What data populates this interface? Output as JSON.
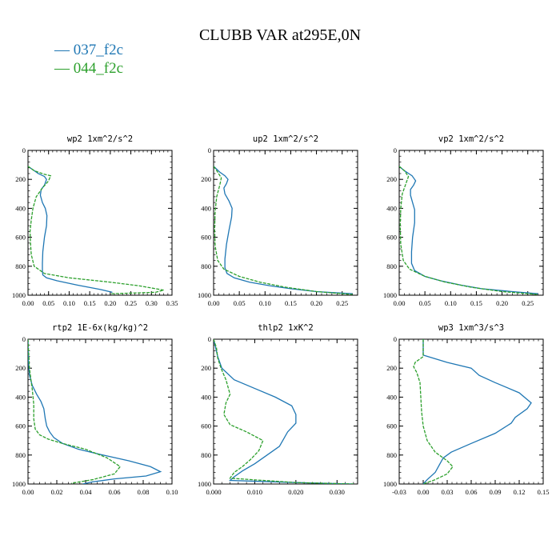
{
  "figure": {
    "title": "CLUBB VAR at295E,0N",
    "legend": [
      {
        "label": "— 037_f2c",
        "color": "#1f77b4"
      },
      {
        "label": "— 044_f2c",
        "color": "#2ca02c"
      }
    ]
  },
  "chart_data": [
    {
      "type": "line",
      "title": "wp2  1xm^2/s^2",
      "xlim": [
        0,
        0.35
      ],
      "ylim": [
        1000,
        0
      ],
      "xticks": [
        "0.00",
        "0.05",
        "0.10",
        "0.15",
        "0.20",
        "0.25",
        "0.30",
        "0.35"
      ],
      "yticks": [
        "0",
        "200",
        "400",
        "600",
        "800",
        "1000"
      ],
      "series": [
        {
          "name": "037_f2c",
          "color": "#1f77b4",
          "x": [
            0.0,
            0.01,
            0.025,
            0.04,
            0.045,
            0.04,
            0.032,
            0.03,
            0.035,
            0.042,
            0.046,
            0.045,
            0.04,
            0.036,
            0.035,
            0.035,
            0.036,
            0.045,
            0.07,
            0.12,
            0.175,
            0.205
          ],
          "y": [
            110,
            130,
            160,
            180,
            200,
            240,
            270,
            310,
            360,
            400,
            450,
            520,
            600,
            700,
            780,
            830,
            860,
            880,
            900,
            930,
            960,
            980
          ]
        },
        {
          "name": "044_f2c",
          "color": "#2ca02c",
          "x": [
            0.0,
            0.015,
            0.04,
            0.055,
            0.05,
            0.035,
            0.02,
            0.012,
            0.008,
            0.005,
            0.006,
            0.008,
            0.015,
            0.04,
            0.1,
            0.2,
            0.27,
            0.33,
            0.31,
            0.2
          ],
          "y": [
            110,
            140,
            165,
            175,
            210,
            260,
            320,
            400,
            480,
            560,
            640,
            720,
            800,
            850,
            880,
            910,
            935,
            965,
            980,
            990
          ]
        }
      ]
    },
    {
      "type": "line",
      "title": "up2  1xm^2/s^2",
      "xlim": [
        0,
        0.28
      ],
      "ylim": [
        1000,
        0
      ],
      "xticks": [
        "0.00",
        "0.05",
        "0.10",
        "0.15",
        "0.20",
        "0.25"
      ],
      "yticks": [
        "0",
        "200",
        "400",
        "600",
        "800",
        "1000"
      ],
      "series": [
        {
          "name": "037_f2c",
          "color": "#1f77b4",
          "x": [
            0.0,
            0.012,
            0.022,
            0.028,
            0.025,
            0.02,
            0.022,
            0.03,
            0.036,
            0.035,
            0.03,
            0.025,
            0.022,
            0.022,
            0.026,
            0.04,
            0.07,
            0.11,
            0.15,
            0.2,
            0.27
          ],
          "y": [
            110,
            150,
            175,
            200,
            230,
            260,
            300,
            350,
            400,
            460,
            550,
            650,
            750,
            810,
            850,
            880,
            910,
            935,
            955,
            975,
            990
          ]
        },
        {
          "name": "044_f2c",
          "color": "#2ca02c",
          "x": [
            0.0,
            0.008,
            0.015,
            0.012,
            0.006,
            0.003,
            0.002,
            0.003,
            0.008,
            0.02,
            0.05,
            0.09,
            0.14,
            0.2,
            0.27
          ],
          "y": [
            110,
            150,
            190,
            240,
            320,
            420,
            540,
            660,
            760,
            820,
            870,
            910,
            945,
            975,
            995
          ]
        }
      ]
    },
    {
      "type": "line",
      "title": "vp2  1xm^2/s^2",
      "xlim": [
        0,
        0.28
      ],
      "ylim": [
        1000,
        0
      ],
      "xticks": [
        "0.00",
        "0.05",
        "0.10",
        "0.15",
        "0.20",
        "0.25"
      ],
      "yticks": [
        "0",
        "200",
        "400",
        "600",
        "800",
        "1000"
      ],
      "series": [
        {
          "name": "037_f2c",
          "color": "#1f77b4",
          "x": [
            0.0,
            0.01,
            0.025,
            0.032,
            0.028,
            0.022,
            0.022,
            0.026,
            0.03,
            0.03,
            0.026,
            0.024,
            0.024,
            0.03,
            0.05,
            0.08,
            0.12,
            0.16,
            0.22,
            0.27
          ],
          "y": [
            110,
            140,
            175,
            210,
            240,
            270,
            310,
            360,
            410,
            500,
            600,
            700,
            780,
            830,
            870,
            900,
            930,
            955,
            975,
            990
          ]
        },
        {
          "name": "044_f2c",
          "color": "#2ca02c",
          "x": [
            0.0,
            0.01,
            0.018,
            0.013,
            0.006,
            0.003,
            0.002,
            0.003,
            0.008,
            0.02,
            0.05,
            0.09,
            0.14,
            0.2,
            0.27
          ],
          "y": [
            110,
            140,
            180,
            230,
            300,
            400,
            520,
            650,
            760,
            820,
            870,
            910,
            945,
            975,
            995
          ]
        }
      ]
    },
    {
      "type": "line",
      "title": "rtp2  1E-6x(kg/kg)^2",
      "xlim": [
        0,
        0.1
      ],
      "ylim": [
        1000,
        0
      ],
      "xticks": [
        "0.00",
        "0.02",
        "0.04",
        "0.06",
        "0.08",
        "0.10"
      ],
      "yticks": [
        "0",
        "200",
        "400",
        "600",
        "800",
        "1000"
      ],
      "series": [
        {
          "name": "037_f2c",
          "color": "#1f77b4",
          "x": [
            0.0,
            0.0003,
            0.001,
            0.003,
            0.006,
            0.009,
            0.011,
            0.012,
            0.013,
            0.015,
            0.018,
            0.024,
            0.035,
            0.052,
            0.07,
            0.085,
            0.092,
            0.082,
            0.06,
            0.045,
            0.038
          ],
          "y": [
            0,
            150,
            250,
            320,
            380,
            430,
            480,
            550,
            600,
            640,
            680,
            720,
            760,
            800,
            840,
            880,
            915,
            945,
            965,
            985,
            1000
          ]
        },
        {
          "name": "044_f2c",
          "color": "#2ca02c",
          "x": [
            0.0,
            0.001,
            0.003,
            0.004,
            0.004,
            0.005,
            0.008,
            0.014,
            0.024,
            0.04,
            0.055,
            0.064,
            0.06,
            0.045,
            0.03
          ],
          "y": [
            0,
            200,
            350,
            450,
            550,
            620,
            660,
            690,
            720,
            760,
            820,
            880,
            930,
            970,
            995
          ]
        }
      ]
    },
    {
      "type": "line",
      "title": "thlp2  1xK^2",
      "xlim": [
        0,
        0.035
      ],
      "ylim": [
        1000,
        0
      ],
      "xticks": [
        "0.000",
        "0.010",
        "0.020",
        "0.030"
      ],
      "yticks": [
        "0",
        "200",
        "400",
        "600",
        "800",
        "1000"
      ],
      "series": [
        {
          "name": "037_f2c",
          "color": "#1f77b4",
          "x": [
            0.0,
            0.0005,
            0.001,
            0.002,
            0.005,
            0.01,
            0.015,
            0.019,
            0.02,
            0.02,
            0.018,
            0.017,
            0.016,
            0.013,
            0.01,
            0.007,
            0.005,
            0.004,
            0.02,
            0.034
          ],
          "y": [
            0,
            60,
            120,
            200,
            280,
            340,
            400,
            460,
            520,
            580,
            640,
            690,
            740,
            800,
            860,
            910,
            950,
            975,
            990,
            1000
          ]
        },
        {
          "name": "044_f2c",
          "color": "#2ca02c",
          "x": [
            0.0,
            0.0007,
            0.001,
            0.0018,
            0.003,
            0.004,
            0.003,
            0.0025,
            0.004,
            0.008,
            0.012,
            0.011,
            0.009,
            0.007,
            0.005,
            0.004,
            0.02,
            0.034
          ],
          "y": [
            0,
            60,
            130,
            200,
            280,
            380,
            440,
            520,
            590,
            640,
            700,
            770,
            830,
            880,
            920,
            960,
            990,
            1000
          ]
        }
      ]
    },
    {
      "type": "line",
      "title": "wp3  1xm^3/s^3",
      "xlim": [
        -0.03,
        0.15
      ],
      "ylim": [
        1000,
        0
      ],
      "xticks": [
        "-0.03",
        "0.00",
        "0.03",
        "0.06",
        "0.09",
        "0.12",
        "0.15"
      ],
      "yticks": [
        "0",
        "200",
        "400",
        "600",
        "800",
        "1000"
      ],
      "series": [
        {
          "name": "037_f2c",
          "color": "#1f77b4",
          "x": [
            0.0,
            0.0,
            0.03,
            0.06,
            0.07,
            0.09,
            0.12,
            0.135,
            0.13,
            0.115,
            0.11,
            0.09,
            0.06,
            0.035,
            0.025,
            0.02,
            0.015,
            0.005,
            0.0
          ],
          "y": [
            0,
            110,
            160,
            200,
            250,
            300,
            370,
            440,
            480,
            540,
            580,
            650,
            720,
            780,
            820,
            870,
            920,
            970,
            1000
          ]
        },
        {
          "name": "044_f2c",
          "color": "#2ca02c",
          "x": [
            0.0,
            0.0,
            -0.01,
            -0.012,
            -0.008,
            -0.004,
            -0.003,
            -0.002,
            0.0,
            0.005,
            0.015,
            0.03,
            0.037,
            0.03,
            0.015,
            0.0
          ],
          "y": [
            0,
            120,
            160,
            190,
            230,
            300,
            400,
            500,
            600,
            700,
            780,
            840,
            880,
            930,
            970,
            1000
          ]
        }
      ]
    }
  ]
}
